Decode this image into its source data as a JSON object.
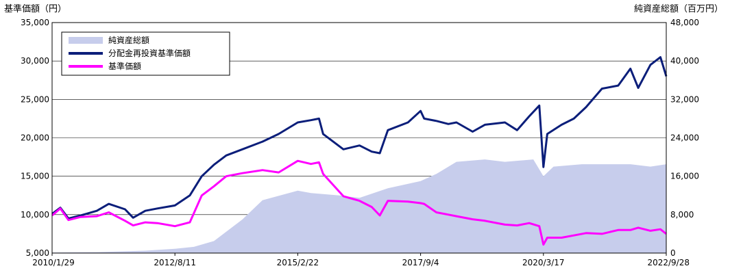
{
  "chart_data": {
    "type": "line",
    "ylabel_left": "基準価額（円）",
    "ylabel_right": "純資産総額（百万円）",
    "left_axis": {
      "min": 5000,
      "max": 35000,
      "step": 5000,
      "tick_labels": [
        "5,000",
        "10,000",
        "15,000",
        "20,000",
        "25,000",
        "30,000",
        "35,000"
      ]
    },
    "right_axis": {
      "min": 0,
      "max": 48000,
      "step": 8000,
      "tick_labels": [
        "0",
        "8,000",
        "16,000",
        "24,000",
        "32,000",
        "40,000",
        "48,000"
      ]
    },
    "x_range": [
      "2010-01-29",
      "2022-09-28"
    ],
    "x_tick_labels": [
      "2010/1/29",
      "2012/8/11",
      "2015/2/22",
      "2017/9/4",
      "2020/3/17",
      "2022/9/28"
    ],
    "grid": "horizontal",
    "legend_position": "top-left",
    "colors": {
      "nav_area": "#c7cdec",
      "reinvested": "#0b1e7a",
      "nav": "#ff00ff"
    },
    "series": [
      {
        "name": "純資産総額",
        "kind": "area",
        "axis": "right",
        "x": [
          "2010-01-29",
          "2011-01-01",
          "2012-01-01",
          "2012-08-11",
          "2013-01-01",
          "2013-06-01",
          "2014-01-01",
          "2014-06-01",
          "2015-02-22",
          "2015-06-01",
          "2016-01-01",
          "2016-06-01",
          "2017-01-01",
          "2017-09-04",
          "2018-01-01",
          "2018-06-01",
          "2019-01-01",
          "2019-06-01",
          "2020-01-01",
          "2020-03-17",
          "2020-06-01",
          "2021-01-01",
          "2021-06-01",
          "2022-01-01",
          "2022-06-01",
          "2022-09-28"
        ],
        "values": [
          100,
          200,
          500,
          900,
          1300,
          2500,
          7000,
          11000,
          13000,
          12500,
          12000,
          11500,
          13500,
          15000,
          16500,
          19000,
          19500,
          19000,
          19500,
          16000,
          18000,
          18500,
          18500,
          18500,
          18000,
          18500
        ]
      },
      {
        "name": "分配金再投資基準価額",
        "kind": "line",
        "axis": "left",
        "x": [
          "2010-01-29",
          "2010-04-01",
          "2010-06-01",
          "2010-09-01",
          "2011-01-01",
          "2011-04-01",
          "2011-08-01",
          "2011-10-01",
          "2012-01-01",
          "2012-04-01",
          "2012-08-11",
          "2012-12-01",
          "2013-03-01",
          "2013-06-01",
          "2013-09-01",
          "2014-01-01",
          "2014-06-01",
          "2014-10-01",
          "2015-02-22",
          "2015-06-01",
          "2015-08-01",
          "2015-09-01",
          "2016-02-01",
          "2016-06-01",
          "2016-09-01",
          "2016-11-01",
          "2017-01-01",
          "2017-06-01",
          "2017-09-04",
          "2017-10-01",
          "2018-01-01",
          "2018-04-01",
          "2018-06-01",
          "2018-10-01",
          "2019-01-01",
          "2019-06-01",
          "2019-09-01",
          "2019-12-01",
          "2020-02-15",
          "2020-03-17",
          "2020-04-15",
          "2020-08-01",
          "2020-11-01",
          "2021-02-01",
          "2021-06-01",
          "2021-10-01",
          "2022-01-01",
          "2022-03-01",
          "2022-06-01",
          "2022-08-15",
          "2022-09-28"
        ],
        "values": [
          10100,
          10900,
          9500,
          9900,
          10500,
          11400,
          10700,
          9600,
          10500,
          10800,
          11200,
          12500,
          15000,
          16500,
          17700,
          18500,
          19500,
          20500,
          22000,
          22300,
          22500,
          20500,
          18500,
          19000,
          18200,
          18000,
          21000,
          22000,
          23500,
          22500,
          22200,
          21800,
          22000,
          20800,
          21700,
          22000,
          21000,
          22800,
          24200,
          16200,
          20500,
          21700,
          22500,
          24000,
          26400,
          26800,
          29000,
          26500,
          29500,
          30500,
          28000
        ]
      },
      {
        "name": "基準価額",
        "kind": "line",
        "axis": "left",
        "x": [
          "2010-01-29",
          "2010-04-01",
          "2010-06-01",
          "2010-09-01",
          "2011-01-01",
          "2011-04-01",
          "2011-08-01",
          "2011-10-01",
          "2012-01-01",
          "2012-04-01",
          "2012-08-11",
          "2012-12-01",
          "2013-03-01",
          "2013-06-01",
          "2013-09-01",
          "2014-01-01",
          "2014-06-01",
          "2014-10-01",
          "2015-02-22",
          "2015-06-01",
          "2015-08-01",
          "2015-09-01",
          "2016-02-01",
          "2016-06-01",
          "2016-09-01",
          "2016-11-01",
          "2017-01-01",
          "2017-06-01",
          "2017-09-04",
          "2017-10-01",
          "2018-01-01",
          "2018-04-01",
          "2018-06-01",
          "2018-10-01",
          "2019-01-01",
          "2019-06-01",
          "2019-09-01",
          "2019-12-01",
          "2020-02-15",
          "2020-03-17",
          "2020-04-15",
          "2020-08-01",
          "2020-11-01",
          "2021-02-01",
          "2021-06-01",
          "2021-10-01",
          "2022-01-01",
          "2022-03-01",
          "2022-06-01",
          "2022-08-15",
          "2022-09-28"
        ],
        "values": [
          9900,
          10800,
          9300,
          9700,
          9800,
          10300,
          9200,
          8600,
          9000,
          8900,
          8500,
          9000,
          12500,
          13700,
          15000,
          15400,
          15800,
          15500,
          17000,
          16600,
          16800,
          15300,
          12400,
          11800,
          11000,
          9900,
          11800,
          11700,
          11500,
          11400,
          10300,
          10000,
          9800,
          9400,
          9200,
          8700,
          8600,
          8900,
          8500,
          6100,
          7000,
          7000,
          7300,
          7600,
          7500,
          8000,
          8000,
          8300,
          7900,
          8100,
          7500
        ]
      }
    ]
  }
}
